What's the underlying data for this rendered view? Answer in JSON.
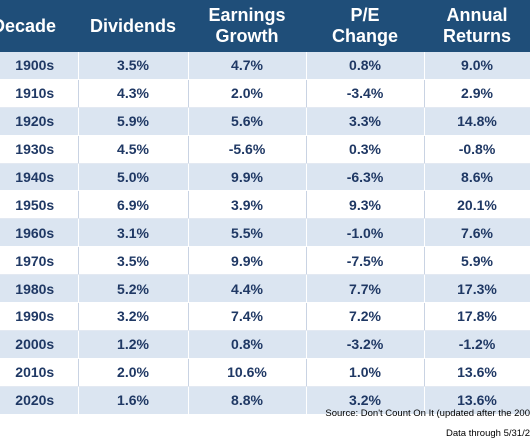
{
  "chart_data": {
    "type": "table",
    "columns": [
      "Decade",
      "Dividends",
      "Earnings Growth",
      "P/E Change",
      "Annual Returns"
    ],
    "rows": [
      [
        "1900s",
        "3.5%",
        "4.7%",
        "0.8%",
        "9.0%"
      ],
      [
        "1910s",
        "4.3%",
        "2.0%",
        "-3.4%",
        "2.9%"
      ],
      [
        "1920s",
        "5.9%",
        "5.6%",
        "3.3%",
        "14.8%"
      ],
      [
        "1930s",
        "4.5%",
        "-5.6%",
        "0.3%",
        "-0.8%"
      ],
      [
        "1940s",
        "5.0%",
        "9.9%",
        "-6.3%",
        "8.6%"
      ],
      [
        "1950s",
        "6.9%",
        "3.9%",
        "9.3%",
        "20.1%"
      ],
      [
        "1960s",
        "3.1%",
        "5.5%",
        "-1.0%",
        "7.6%"
      ],
      [
        "1970s",
        "3.5%",
        "9.9%",
        "-7.5%",
        "5.9%"
      ],
      [
        "1980s",
        "5.2%",
        "4.4%",
        "7.7%",
        "17.3%"
      ],
      [
        "1990s",
        "3.2%",
        "7.4%",
        "7.2%",
        "17.8%"
      ],
      [
        "2000s",
        "1.2%",
        "0.8%",
        "-3.2%",
        "-1.2%"
      ],
      [
        "2010s",
        "2.0%",
        "10.6%",
        "1.0%",
        "13.6%"
      ],
      [
        "2020s",
        "1.6%",
        "8.8%",
        "3.2%",
        "13.6%"
      ]
    ]
  },
  "header": {
    "decade": "Decade",
    "dividends": "Dividends",
    "earnings_line1": "Earnings",
    "earnings_line2": "Growth",
    "pe_line1": "P/E",
    "pe_line2": "Change",
    "returns_line1": "Annual",
    "returns_line2": "Returns"
  },
  "footer": {
    "source": "Source: Don't Count On It (updated after the 200",
    "data_through": "Data through 5/31/2"
  },
  "colors": {
    "header_bg": "#1f4e79",
    "header_text": "#ffffff",
    "band_bg": "#dbe5f1",
    "cell_text": "#1f3864"
  }
}
